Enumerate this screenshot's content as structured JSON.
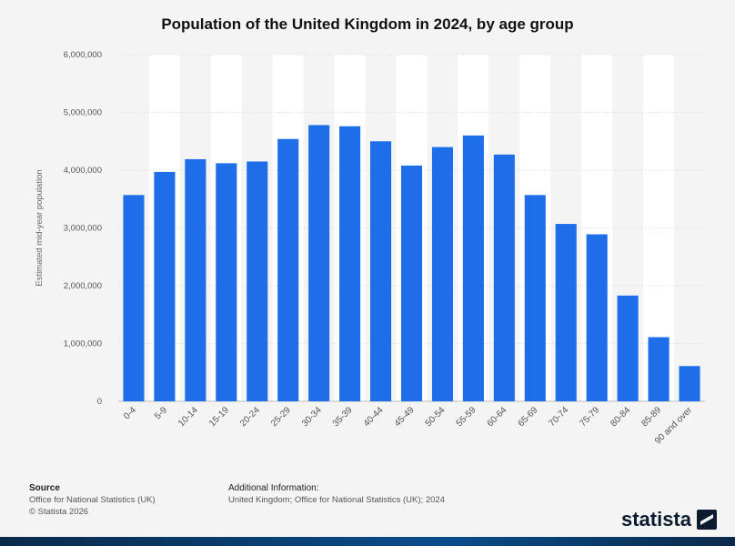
{
  "chart_data": {
    "type": "bar",
    "title": "Population of the United Kingdom in 2024, by age group",
    "xlabel": "",
    "ylabel": "Estimated mid-year population",
    "categories": [
      "0-4",
      "5-9",
      "10-14",
      "15-19",
      "20-24",
      "25-29",
      "30-34",
      "35-39",
      "40-44",
      "45-49",
      "50-54",
      "55-59",
      "60-64",
      "65-69",
      "70-74",
      "75-79",
      "80-84",
      "85-89",
      "90 and over"
    ],
    "values": [
      3570000,
      3970000,
      4190000,
      4120000,
      4150000,
      4540000,
      4780000,
      4760000,
      4500000,
      4080000,
      4400000,
      4600000,
      4270000,
      3570000,
      3070000,
      2890000,
      1830000,
      1110000,
      610000
    ],
    "ylim": [
      0,
      6000000
    ],
    "yticks": [
      "0",
      "1,000,000",
      "2,000,000",
      "3,000,000",
      "4,000,000",
      "5,000,000",
      "6,000,000"
    ],
    "bar_color": "#1d6ee8",
    "grid": true,
    "legend": "none"
  },
  "footer": {
    "source_heading": "Source",
    "source_line1": "Office for National Statistics (UK)",
    "source_line2": "© Statista 2026",
    "additional_heading": "Additional Information:",
    "additional_line1": "United Kingdom; Office for National Statistics (UK); 2024"
  },
  "brand": {
    "name": "statista",
    "icon": "statista-logo-icon"
  }
}
